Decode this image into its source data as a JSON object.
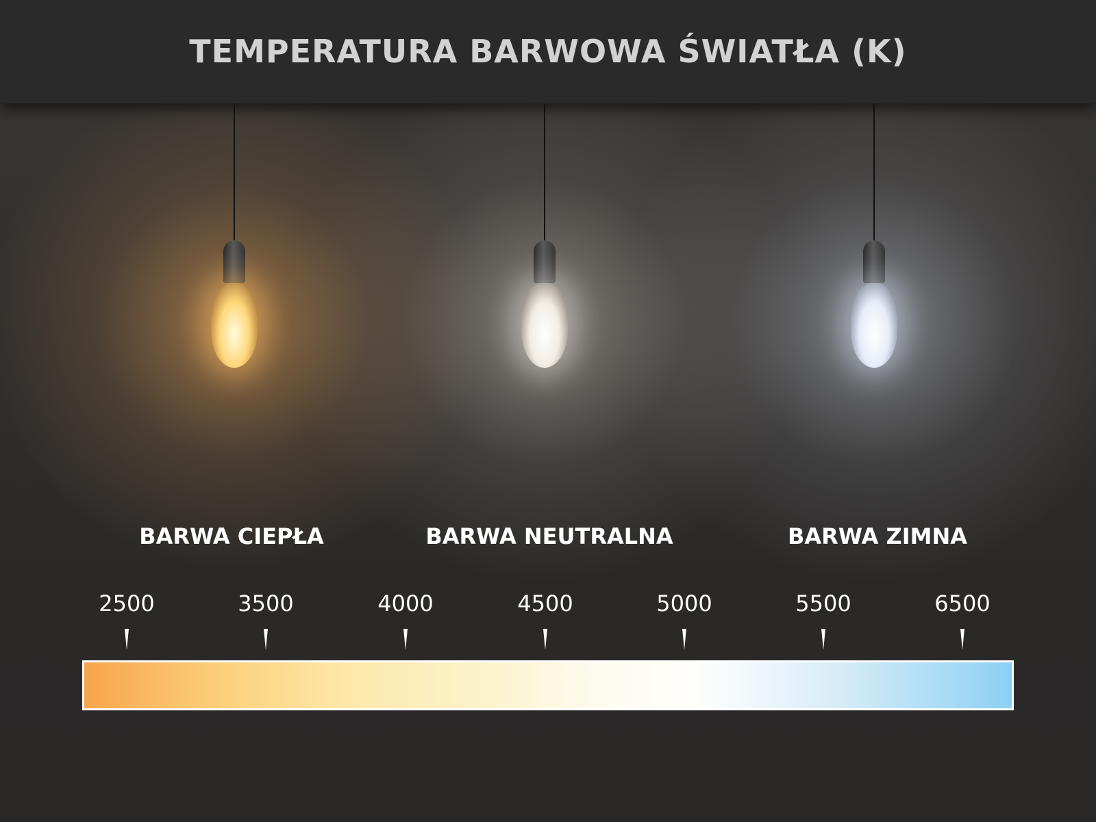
{
  "title": "TEMPERATURA BARWOWA ŚWIATŁA (K)",
  "lamps": [
    {
      "name": "warm",
      "label": "BARWA CIEPŁA",
      "glow_color": "#f7b067"
    },
    {
      "name": "neutral",
      "label": "BARWA NEUTRALNA",
      "glow_color": "#f1ece2"
    },
    {
      "name": "cool",
      "label": "BARWA ZIMNA",
      "glow_color": "#e6ecf8"
    }
  ],
  "scale": {
    "unit": "K",
    "ticks": [
      "2500",
      "3500",
      "4000",
      "4500",
      "5000",
      "5500",
      "6500"
    ],
    "gradient_colors": [
      "#f7a54a",
      "#fcd07c",
      "#fdfbee",
      "#ffffff",
      "#8dd0f4"
    ]
  }
}
